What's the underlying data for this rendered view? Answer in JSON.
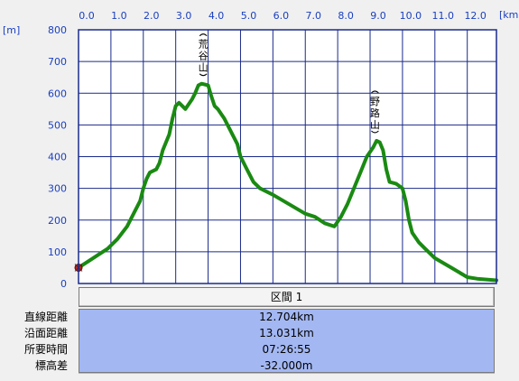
{
  "chart_data": {
    "type": "line",
    "title": "",
    "xlabel": "",
    "ylabel": "",
    "x_unit": "[km]",
    "y_unit": "[m]",
    "xlim": [
      0,
      12.9
    ],
    "ylim": [
      0,
      800
    ],
    "x_ticks": [
      0,
      1,
      2,
      3,
      4,
      5,
      6,
      7,
      8,
      9,
      10,
      11,
      12
    ],
    "x_tick_labels": [
      "0.0",
      "1.0",
      "2.0",
      "3.0",
      "4.0",
      "5.0",
      "6.0",
      "7.0",
      "8.0",
      "9.0",
      "10.0",
      "11.0",
      "12.0"
    ],
    "y_ticks": [
      0,
      100,
      200,
      300,
      400,
      500,
      600,
      700,
      800
    ],
    "y_tick_labels": [
      "0",
      "100",
      "200",
      "300",
      "400",
      "500",
      "600",
      "700",
      "800"
    ],
    "grid": true,
    "line_color": "#1a8a12",
    "series": [
      {
        "x": [
          0.0,
          0.3,
          0.6,
          0.9,
          1.2,
          1.5,
          1.7,
          1.9,
          2.0,
          2.1,
          2.2,
          2.4,
          2.5,
          2.6,
          2.8,
          2.9,
          3.0,
          3.1,
          3.2,
          3.3,
          3.5,
          3.6,
          3.7,
          3.8,
          4.0,
          4.1,
          4.2,
          4.3,
          4.5,
          4.7,
          4.9,
          5.0,
          5.2,
          5.4,
          5.6,
          6.0,
          6.5,
          7.0,
          7.3,
          7.6,
          7.9,
          8.1,
          8.3,
          8.5,
          8.7,
          8.9,
          9.1,
          9.2,
          9.3,
          9.4,
          9.5,
          9.6,
          9.8,
          10.0,
          10.1,
          10.2,
          10.3,
          10.5,
          10.7,
          11.0,
          11.5,
          12.0,
          12.3,
          12.9
        ],
        "y": [
          50,
          70,
          90,
          110,
          140,
          180,
          220,
          260,
          300,
          330,
          350,
          360,
          380,
          420,
          470,
          520,
          560,
          570,
          560,
          550,
          580,
          600,
          625,
          630,
          625,
          590,
          560,
          550,
          520,
          480,
          440,
          400,
          360,
          320,
          300,
          280,
          250,
          220,
          210,
          190,
          180,
          210,
          250,
          300,
          350,
          400,
          430,
          450,
          445,
          420,
          360,
          320,
          315,
          300,
          260,
          200,
          160,
          130,
          110,
          80,
          50,
          20,
          15,
          10
        ]
      }
    ],
    "annotations": [
      {
        "text": "荒谷山",
        "x": 3.85
      },
      {
        "text": "野路山",
        "x": 9.15
      }
    ],
    "start_marker": {
      "x": 0.0,
      "y": 50
    }
  },
  "stats": {
    "header": "区間 1",
    "rows": [
      {
        "label": "直線距離",
        "value": "12.704km"
      },
      {
        "label": "沿面距離",
        "value": "13.031km"
      },
      {
        "label": "所要時間",
        "value": "07:26:55"
      },
      {
        "label": "標高差",
        "value": "-32.000m"
      }
    ]
  }
}
